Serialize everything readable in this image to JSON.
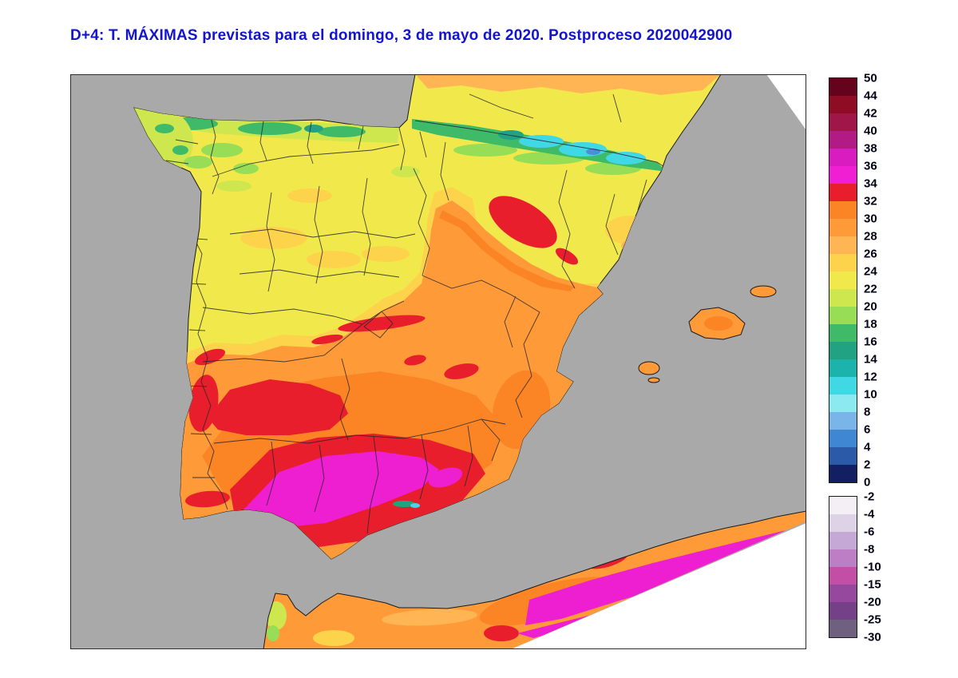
{
  "title": {
    "text": "D+4: T. MÁXIMAS previstas para el domingo, 3 de mayo de 2020. Postproceso 2020042900"
  },
  "legend_top": {
    "labels": [
      "50",
      "44",
      "42",
      "40",
      "38",
      "36",
      "34",
      "32",
      "30",
      "28",
      "26",
      "24",
      "22",
      "20",
      "18",
      "16",
      "14",
      "12",
      "10",
      "8",
      "6",
      "4",
      "2",
      "0"
    ],
    "colors": [
      "#65021c",
      "#8e0d24",
      "#a01648",
      "#b21a86",
      "#d81cc0",
      "#f11fd4",
      "#e81e2c",
      "#fb8524",
      "#ff9a38",
      "#ffb554",
      "#fed34c",
      "#f1e94b",
      "#cfe74f",
      "#97dd55",
      "#3eba68",
      "#21a383",
      "#1cb3ad",
      "#41d8e6",
      "#8ce9f0",
      "#79b5e8",
      "#3f87d3",
      "#2a5aa8",
      "#131f63"
    ]
  },
  "legend_bottom": {
    "labels": [
      "-2",
      "-4",
      "-6",
      "-8",
      "-10",
      "-15",
      "-20",
      "-25",
      "-30"
    ],
    "colors": [
      "#f3eff5",
      "#ded2e6",
      "#c6a8d6",
      "#bd7ec6",
      "#c24ea6",
      "#96489e",
      "#744188",
      "#6f6080"
    ]
  },
  "palette": {
    "title_blue": "#1414cc",
    "sea": "#a9a9a9",
    "coast": "#1a1a1a",
    "admin": "#26262e",
    "frame": "#2b2b2b",
    "white": "#ffffff",
    "yellow": "#f1e94b",
    "yellow_green": "#cfe74f",
    "light_green": "#97dd55",
    "green": "#3eba68",
    "teal": "#21a383",
    "cyan": "#41d8e6",
    "blue": "#4a90d9",
    "amber": "#fed34c",
    "light_orange": "#ffb554",
    "orange": "#ff9a38",
    "deep_orange": "#fb8524",
    "red": "#e81e2c",
    "magenta": "#ee1fd0"
  }
}
